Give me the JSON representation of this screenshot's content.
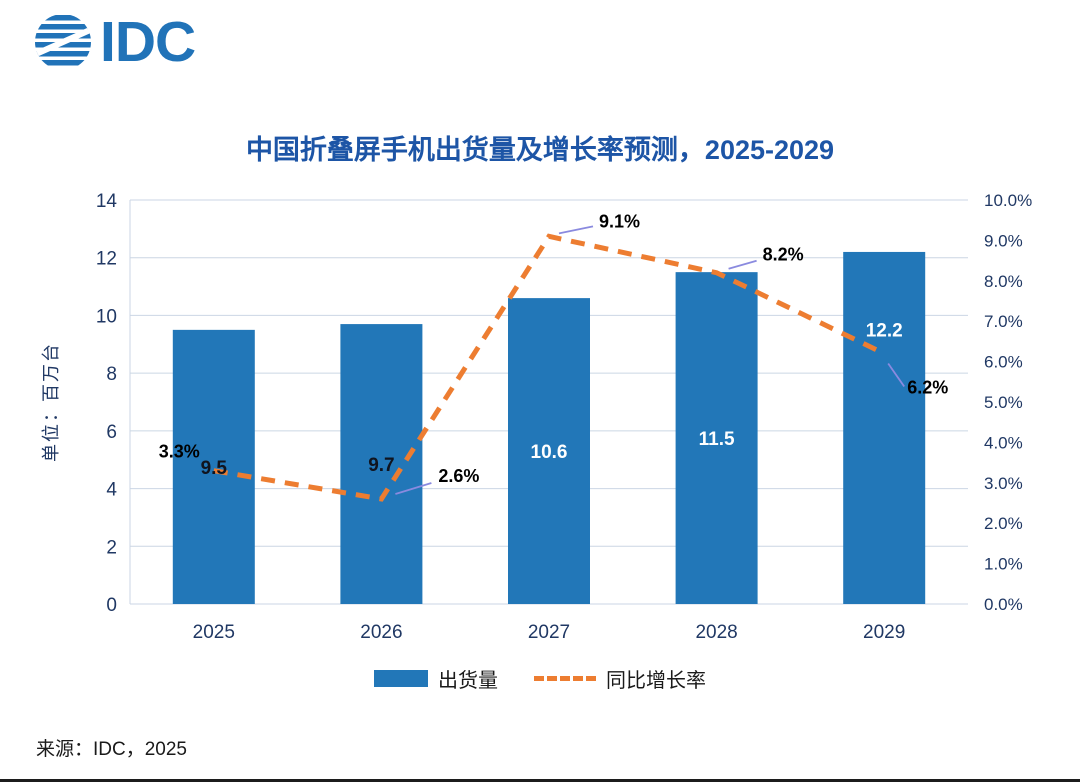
{
  "logo": {
    "text": "IDC",
    "color": "#2173B8"
  },
  "header": {
    "title": "中国折叠屏手机出货量及增长率预测，2025-2029"
  },
  "chart_data": {
    "type": "bar-line-combo",
    "title": "中国折叠屏手机出货量及增长率预测，2025-2029",
    "categories": [
      "2025",
      "2026",
      "2027",
      "2028",
      "2029"
    ],
    "series": [
      {
        "name": "出货量",
        "type": "bar",
        "axis": "left",
        "color": "#2277B8",
        "values": [
          9.5,
          9.7,
          10.6,
          11.5,
          12.2
        ],
        "labels": [
          "9.5",
          "9.7",
          "10.6",
          "11.5",
          "12.2"
        ],
        "label_colors": [
          "#10141f",
          "#10141f",
          "#ffffff",
          "#ffffff",
          "#ffffff"
        ]
      },
      {
        "name": "同比增长率",
        "type": "line",
        "axis": "right",
        "color": "#ED7D31",
        "dash": true,
        "values": [
          3.3,
          2.6,
          9.1,
          8.2,
          6.2
        ],
        "labels": [
          "3.3%",
          "2.6%",
          "9.1%",
          "8.2%",
          "6.2%"
        ]
      }
    ],
    "left_axis": {
      "label": "单位：百万台",
      "min": 0,
      "max": 14,
      "ticks": [
        0,
        2,
        4,
        6,
        8,
        10,
        12,
        14
      ]
    },
    "right_axis": {
      "min": 0,
      "max": 10,
      "ticks": [
        "0.0%",
        "1.0%",
        "2.0%",
        "3.0%",
        "4.0%",
        "5.0%",
        "6.0%",
        "7.0%",
        "8.0%",
        "9.0%",
        "10.0%"
      ]
    },
    "grid": true,
    "legend_position": "bottom",
    "grid_color": "#CBD6E4",
    "callout_color": "#8A8ADF"
  },
  "legend": {
    "bar_label": "出货量",
    "line_label": "同比增长率"
  },
  "footer": {
    "source": "来源：IDC，2025"
  }
}
